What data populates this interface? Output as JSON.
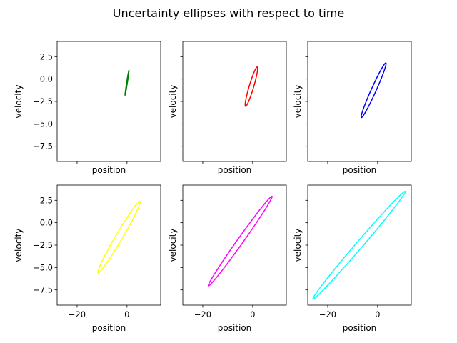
{
  "chart_data": {
    "type": "line",
    "title": "Uncertainty ellipses with respect to time",
    "shared_axes": {
      "xlim": [
        -28,
        13.5
      ],
      "ylim": [
        -9.2,
        4.2
      ],
      "xticks": [
        -20,
        0
      ],
      "xtick_labels": [
        "−20",
        "0"
      ],
      "yticks": [
        2.5,
        0.0,
        -2.5,
        -5.0,
        -7.5
      ],
      "ytick_labels": [
        "2.5",
        "0.0",
        "−2.5",
        "−5.0",
        "−7.5"
      ],
      "xlabel": "position",
      "ylabel": "velocity",
      "grid": false
    },
    "subplots": [
      {
        "row": 0,
        "col": 0,
        "color": "#008000",
        "ellipse": {
          "cx": 0.0,
          "cy": -0.4,
          "rx": 0.8,
          "ry": 1.4,
          "cov": 1.1
        }
      },
      {
        "row": 0,
        "col": 1,
        "color": "#ff0000",
        "ellipse": {
          "cx": -0.5,
          "cy": -0.85,
          "rx": 2.5,
          "ry": 2.2,
          "cov": 5.1
        }
      },
      {
        "row": 0,
        "col": 2,
        "color": "#0000ff",
        "ellipse": {
          "cx": -1.6,
          "cy": -1.25,
          "rx": 5.0,
          "ry": 3.05,
          "cov": 14.9
        }
      },
      {
        "row": 1,
        "col": 0,
        "color": "#ffff00",
        "ellipse": {
          "cx": -3.2,
          "cy": -1.6,
          "rx": 8.5,
          "ry": 4.0,
          "cov": 33.4
        }
      },
      {
        "row": 1,
        "col": 1,
        "color": "#ff00ff",
        "ellipse": {
          "cx": -5.0,
          "cy": -2.05,
          "rx": 12.8,
          "ry": 5.0,
          "cov": 63.6
        }
      },
      {
        "row": 1,
        "col": 2,
        "color": "#00ffff",
        "ellipse": {
          "cx": -7.4,
          "cy": -2.5,
          "rx": 18.5,
          "ry": 6.0,
          "cov": 110.5
        }
      }
    ]
  }
}
